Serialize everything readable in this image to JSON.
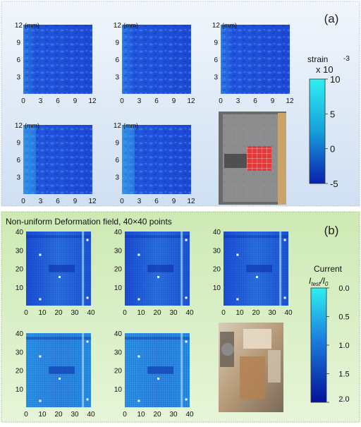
{
  "panel_a": {
    "label": "(a)",
    "unit_label": "(mm)",
    "ticks": [
      "0",
      "3",
      "6",
      "9",
      "12"
    ],
    "colorbar": {
      "title": "strain",
      "multiplier": "x 10",
      "exponent": "-3",
      "ticks": [
        "10",
        "5",
        "0",
        "-5"
      ]
    }
  },
  "panel_b": {
    "label": "(b)",
    "title": "Non-uniform Deformation field, 40×40 points",
    "ticks": [
      "0",
      "10",
      "20",
      "30",
      "40"
    ],
    "colorbar": {
      "title": "Current",
      "formula_main": "I",
      "formula_sub1": "test",
      "formula_mid": "/I",
      "formula_sub2": "0",
      "ticks": [
        "0.0",
        "0.5",
        "1.0",
        "1.5",
        "2.0"
      ]
    }
  },
  "colors": {
    "panel_a_bg": "#dce8f6",
    "panel_b_bg": "#d9efc4",
    "map_blue": "#1f4fd8",
    "map_light": "#34c8ee"
  }
}
